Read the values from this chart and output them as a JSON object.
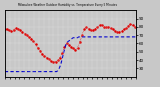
{
  "title": "Milwaukee Weather Outdoor Humidity vs. Temperature Every 5 Minutes",
  "bg_color": "#c8c8c8",
  "plot_bg": "#c8c8c8",
  "temp_color": "#dd0000",
  "humidity_color": "#0000cc",
  "ylim": [
    20,
    100
  ],
  "right_ticks": [
    90,
    80,
    70,
    60,
    50,
    40,
    30
  ],
  "n_points": 120,
  "temp_profile": [
    78,
    78,
    77,
    76,
    76,
    75,
    75,
    74,
    76,
    78,
    79,
    79,
    78,
    77,
    76,
    75,
    74,
    73,
    72,
    71,
    70,
    69,
    68,
    67,
    66,
    65,
    63,
    61,
    59,
    57,
    55,
    53,
    51,
    49,
    47,
    46,
    45,
    44,
    43,
    42,
    41,
    40,
    39,
    38,
    38,
    38,
    38,
    39,
    40,
    41,
    43,
    45,
    48,
    52,
    56,
    58,
    60,
    59,
    58,
    57,
    56,
    55,
    54,
    53,
    52,
    53,
    55,
    58,
    62,
    66,
    70,
    74,
    77,
    79,
    80,
    79,
    78,
    77,
    76,
    75,
    76,
    77,
    78,
    79,
    80,
    81,
    82,
    83,
    82,
    81,
    80,
    80,
    80,
    80,
    80,
    80,
    79,
    78,
    77,
    76,
    75,
    74,
    74,
    74,
    74,
    74,
    75,
    76,
    77,
    78,
    79,
    80,
    81,
    82,
    83,
    83,
    82,
    81,
    80,
    79
  ],
  "humidity_profile": [
    26,
    26,
    26,
    26,
    26,
    26,
    26,
    26,
    26,
    26,
    26,
    26,
    26,
    26,
    26,
    26,
    26,
    26,
    26,
    26,
    26,
    26,
    26,
    26,
    26,
    26,
    26,
    26,
    26,
    26,
    26,
    26,
    26,
    26,
    26,
    26,
    26,
    26,
    26,
    26,
    26,
    26,
    26,
    26,
    26,
    26,
    26,
    26,
    27,
    29,
    32,
    36,
    41,
    47,
    52,
    57,
    60,
    62,
    63,
    64,
    65,
    66,
    67,
    67,
    67,
    67,
    67,
    68,
    68,
    68,
    68,
    68,
    68,
    68,
    68,
    68,
    68,
    68,
    68,
    68,
    68,
    68,
    68,
    68,
    68,
    68,
    68,
    68,
    68,
    68,
    68,
    68,
    68,
    68,
    68,
    68,
    68,
    68,
    68,
    68,
    68,
    68,
    68,
    68,
    68,
    68,
    68,
    68,
    68,
    68,
    68,
    68,
    68,
    68,
    68,
    68,
    68,
    68,
    68,
    68
  ]
}
